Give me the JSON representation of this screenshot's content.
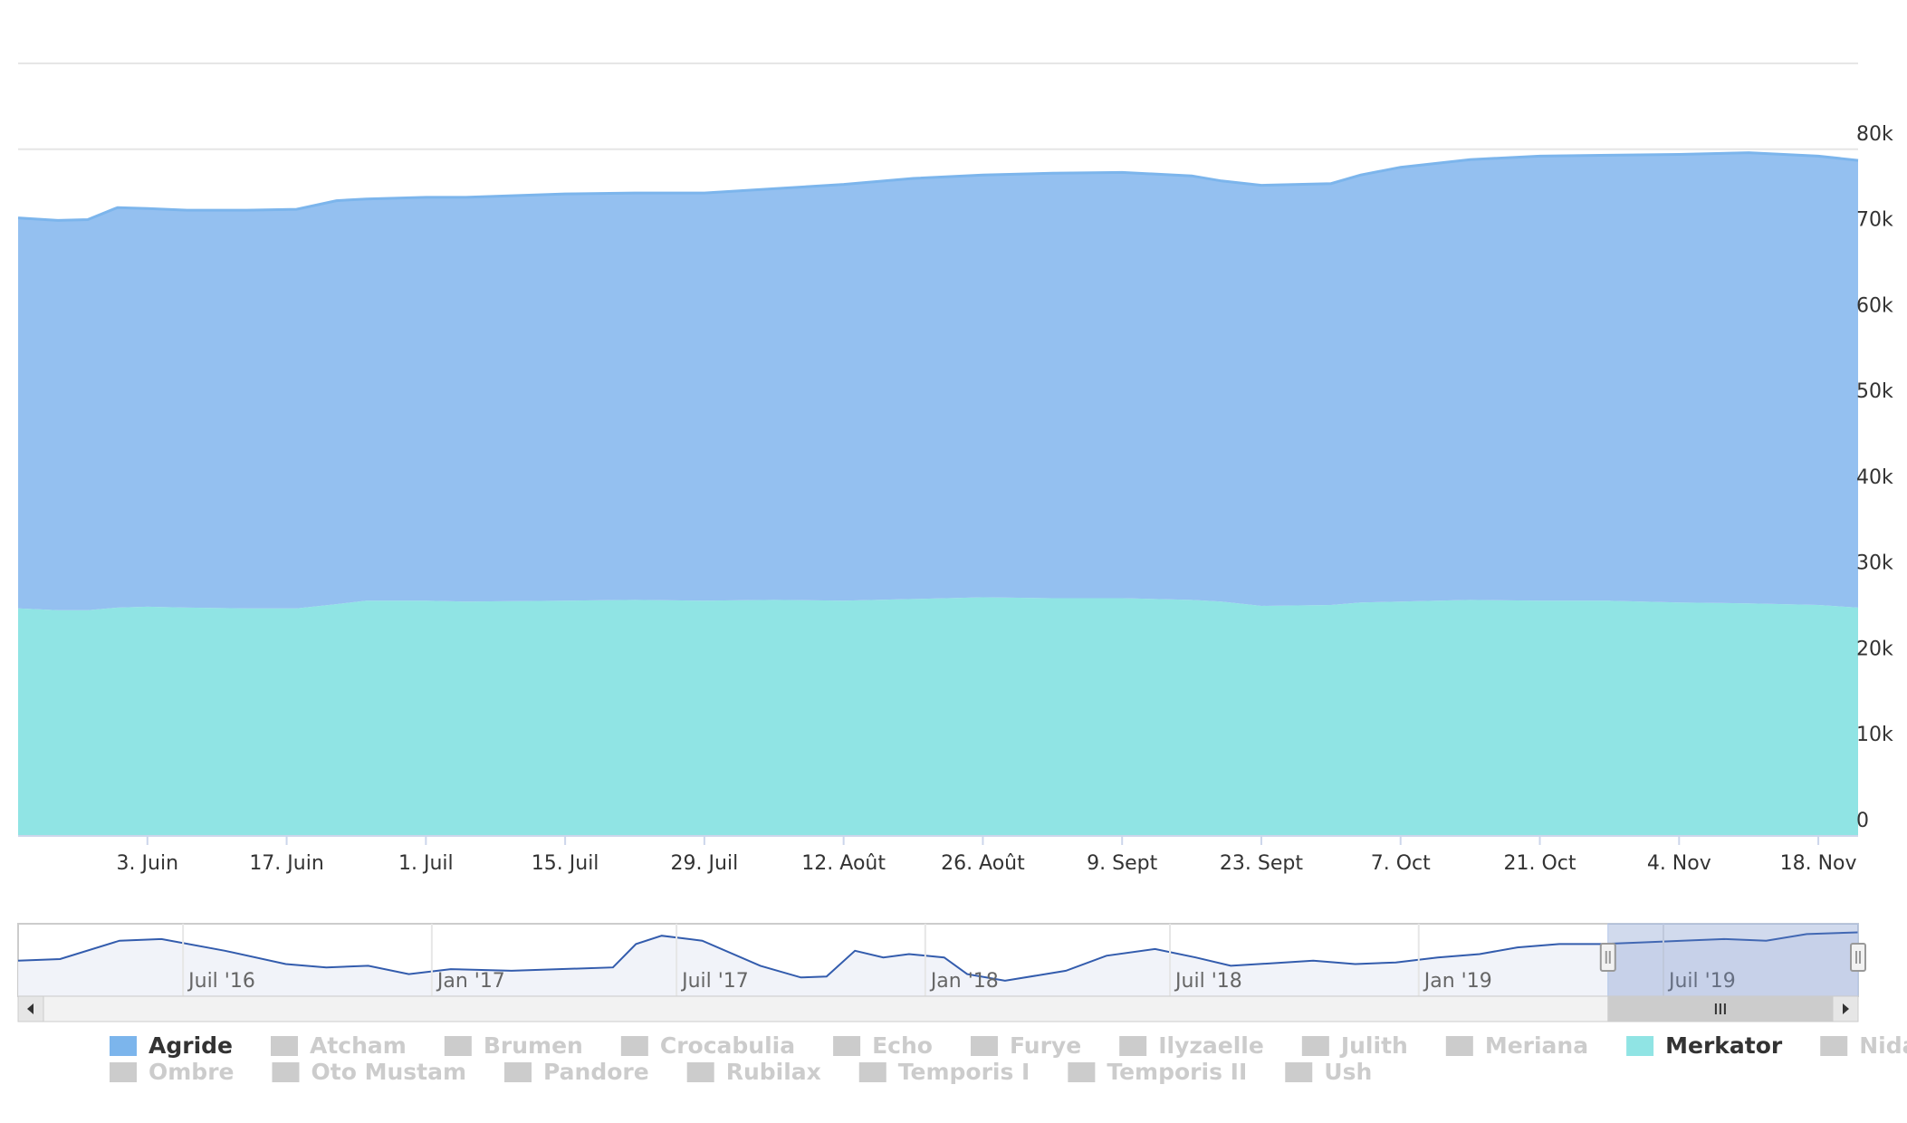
{
  "chart_data": {
    "type": "area",
    "stacked": true,
    "x_label_format": "day-month",
    "x_ticks": [
      "3. Juin",
      "17. Juin",
      "1. Juil",
      "15. Juil",
      "29. Juil",
      "12. Août",
      "26. Août",
      "9. Sept",
      "23. Sept",
      "7. Oct",
      "21. Oct",
      "4. Nov",
      "18. Nov"
    ],
    "x_range": [
      "2019-05-21",
      "2019-11-22"
    ],
    "y_ticks": [
      "0",
      "10k",
      "20k",
      "30k",
      "40k",
      "50k",
      "60k",
      "70k",
      "80k"
    ],
    "ylim": [
      0,
      90000
    ],
    "grid": true,
    "series": [
      {
        "name": "Merkator",
        "color": "#90e4e4",
        "points": [
          [
            "2019-05-21",
            26500
          ],
          [
            "2019-05-25",
            26300
          ],
          [
            "2019-05-28",
            26300
          ],
          [
            "2019-05-31",
            26600
          ],
          [
            "2019-06-03",
            26700
          ],
          [
            "2019-06-07",
            26600
          ],
          [
            "2019-06-13",
            26500
          ],
          [
            "2019-06-18",
            26500
          ],
          [
            "2019-06-22",
            27000
          ],
          [
            "2019-06-25",
            27400
          ],
          [
            "2019-07-01",
            27400
          ],
          [
            "2019-07-05",
            27300
          ],
          [
            "2019-07-15",
            27400
          ],
          [
            "2019-07-22",
            27500
          ],
          [
            "2019-07-29",
            27400
          ],
          [
            "2019-08-05",
            27500
          ],
          [
            "2019-08-12",
            27400
          ],
          [
            "2019-08-19",
            27600
          ],
          [
            "2019-08-26",
            27800
          ],
          [
            "2019-09-02",
            27700
          ],
          [
            "2019-09-09",
            27700
          ],
          [
            "2019-09-16",
            27500
          ],
          [
            "2019-09-19",
            27300
          ],
          [
            "2019-09-23",
            26800
          ],
          [
            "2019-09-30",
            26900
          ],
          [
            "2019-10-03",
            27200
          ],
          [
            "2019-10-07",
            27300
          ],
          [
            "2019-10-14",
            27500
          ],
          [
            "2019-10-21",
            27400
          ],
          [
            "2019-10-28",
            27400
          ],
          [
            "2019-11-04",
            27200
          ],
          [
            "2019-11-11",
            27100
          ],
          [
            "2019-11-18",
            26900
          ],
          [
            "2019-11-22",
            26600
          ]
        ]
      },
      {
        "name": "Agride",
        "color": "#94c0f0",
        "points": [
          [
            "2019-05-21",
            45500
          ],
          [
            "2019-05-25",
            45400
          ],
          [
            "2019-05-28",
            45500
          ],
          [
            "2019-05-31",
            46600
          ],
          [
            "2019-06-03",
            46400
          ],
          [
            "2019-06-07",
            46300
          ],
          [
            "2019-06-13",
            46400
          ],
          [
            "2019-06-18",
            46500
          ],
          [
            "2019-06-22",
            47000
          ],
          [
            "2019-06-25",
            46800
          ],
          [
            "2019-07-01",
            47000
          ],
          [
            "2019-07-05",
            47100
          ],
          [
            "2019-07-15",
            47400
          ],
          [
            "2019-07-22",
            47400
          ],
          [
            "2019-07-29",
            47500
          ],
          [
            "2019-08-05",
            47900
          ],
          [
            "2019-08-12",
            48500
          ],
          [
            "2019-08-19",
            49000
          ],
          [
            "2019-08-26",
            49200
          ],
          [
            "2019-09-02",
            49500
          ],
          [
            "2019-09-09",
            49600
          ],
          [
            "2019-09-16",
            49400
          ],
          [
            "2019-09-19",
            49000
          ],
          [
            "2019-09-23",
            49000
          ],
          [
            "2019-09-30",
            49100
          ],
          [
            "2019-10-03",
            49800
          ],
          [
            "2019-10-07",
            50600
          ],
          [
            "2019-10-14",
            51300
          ],
          [
            "2019-10-21",
            51800
          ],
          [
            "2019-10-28",
            51900
          ],
          [
            "2019-11-04",
            52200
          ],
          [
            "2019-11-11",
            52500
          ],
          [
            "2019-11-18",
            52300
          ],
          [
            "2019-11-22",
            52100
          ]
        ]
      }
    ],
    "navigator": {
      "ticks": [
        "Juil '16",
        "Jan '17",
        "Juil '17",
        "Jan '18",
        "Juil '18",
        "Jan '19",
        "Juil '19"
      ],
      "range": [
        "2016-03-01",
        "2019-11-22"
      ],
      "selected": [
        "2019-05-21",
        "2019-11-22"
      ],
      "series": [
        [
          "2016-03-01",
          18000
        ],
        [
          "2016-04-01",
          19000
        ],
        [
          "2016-05-15",
          30000
        ],
        [
          "2016-06-15",
          31000
        ],
        [
          "2016-08-01",
          24000
        ],
        [
          "2016-09-15",
          16000
        ],
        [
          "2016-10-15",
          14000
        ],
        [
          "2016-11-15",
          15000
        ],
        [
          "2016-12-15",
          10000
        ],
        [
          "2017-01-15",
          13000
        ],
        [
          "2017-03-01",
          12000
        ],
        [
          "2017-05-15",
          14000
        ],
        [
          "2017-06-01",
          28000
        ],
        [
          "2017-06-20",
          33000
        ],
        [
          "2017-07-20",
          30000
        ],
        [
          "2017-09-01",
          15000
        ],
        [
          "2017-10-01",
          8000
        ],
        [
          "2017-10-20",
          8500
        ],
        [
          "2017-11-10",
          24000
        ],
        [
          "2017-12-01",
          20000
        ],
        [
          "2017-12-20",
          22000
        ],
        [
          "2018-01-15",
          20000
        ],
        [
          "2018-02-01",
          10000
        ],
        [
          "2018-03-01",
          6000
        ],
        [
          "2018-04-15",
          12000
        ],
        [
          "2018-05-15",
          21000
        ],
        [
          "2018-06-20",
          25000
        ],
        [
          "2018-07-20",
          20000
        ],
        [
          "2018-08-15",
          15000
        ],
        [
          "2018-10-15",
          18000
        ],
        [
          "2018-11-15",
          16000
        ],
        [
          "2018-12-15",
          17000
        ],
        [
          "2019-01-15",
          20000
        ],
        [
          "2019-02-15",
          22000
        ],
        [
          "2019-03-15",
          26000
        ],
        [
          "2019-04-15",
          28000
        ],
        [
          "2019-05-15",
          28000
        ],
        [
          "2019-06-15",
          29000
        ],
        [
          "2019-07-15",
          30000
        ],
        [
          "2019-08-15",
          31000
        ],
        [
          "2019-09-15",
          30000
        ],
        [
          "2019-10-15",
          34000
        ],
        [
          "2019-11-22",
          35000
        ]
      ]
    },
    "legend_placement": "bottom",
    "legend": [
      {
        "name": "Agride",
        "active": true,
        "color": "#7cb5ec"
      },
      {
        "name": "Atcham",
        "active": false
      },
      {
        "name": "Brumen",
        "active": false
      },
      {
        "name": "Crocabulia",
        "active": false
      },
      {
        "name": "Echo",
        "active": false
      },
      {
        "name": "Furye",
        "active": false
      },
      {
        "name": "Ilyzaelle",
        "active": false
      },
      {
        "name": "Julith",
        "active": false
      },
      {
        "name": "Meriana",
        "active": false
      },
      {
        "name": "Merkator",
        "active": true,
        "color": "#90e4e4"
      },
      {
        "name": "Nidas",
        "active": false
      },
      {
        "name": "Ombre",
        "active": false
      },
      {
        "name": "Oto Mustam",
        "active": false
      },
      {
        "name": "Pandore",
        "active": false
      },
      {
        "name": "Rubilax",
        "active": false
      },
      {
        "name": "Temporis I",
        "active": false
      },
      {
        "name": "Temporis II",
        "active": false
      },
      {
        "name": "Ush",
        "active": false
      }
    ],
    "colors": {
      "agride_line": "#7cb5ec",
      "grid": "#e6e6e6",
      "axis_text": "#333333",
      "navigator_line": "#335cad",
      "navigator_mask": "rgba(102,133,194,0.3)",
      "inactive_legend": "#cccccc",
      "scrollbar_track": "#f2f2f2",
      "scrollbar_thumb": "#cccccc"
    }
  }
}
